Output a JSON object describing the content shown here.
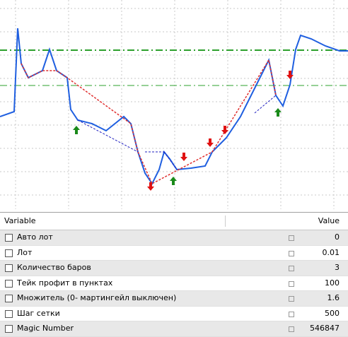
{
  "table": {
    "headers": [
      "Variable",
      "Value"
    ],
    "rows": [
      [
        "Авто лот",
        0
      ],
      [
        "Лот",
        0.01
      ],
      [
        "Количество баров",
        3
      ],
      [
        "Тейк профит в пунктах",
        100
      ],
      [
        "Множитель (0- мартингейл выключен)",
        1.6
      ],
      [
        "Шаг сетки",
        500
      ],
      [
        "Magic Number",
        546847
      ]
    ]
  }
}
